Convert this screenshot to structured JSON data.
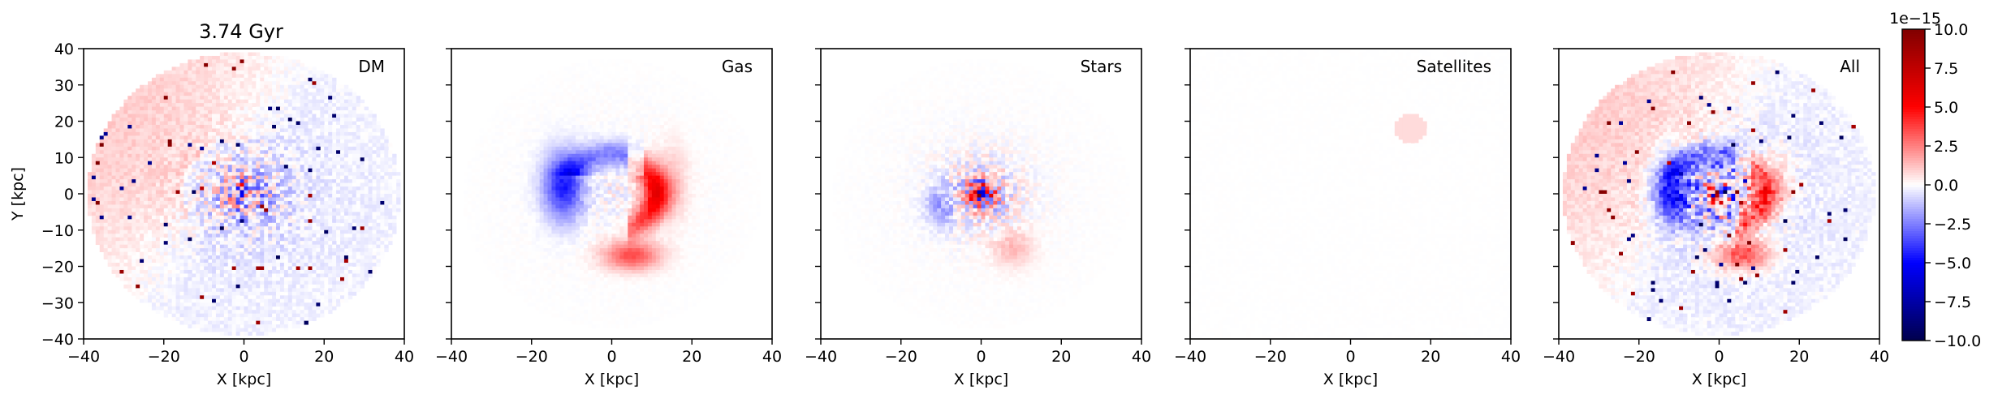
{
  "chart_data": {
    "type": "heatmap",
    "title": "3.74 Gyr",
    "xlim": [
      -40,
      40
    ],
    "ylim": [
      -40,
      40
    ],
    "x_ticks": [
      -40,
      -20,
      0,
      20,
      40
    ],
    "y_ticks": [
      40,
      30,
      20,
      10,
      0,
      -10,
      -20,
      -30,
      -40
    ],
    "xlabel": "X [kpc]",
    "ylabel": "Y [kpc]",
    "colorbar": {
      "cmap": "seismic",
      "range": [
        -10.0,
        10.0
      ],
      "offset_label": "1e−15",
      "ticks": [
        "10.0",
        "7.5",
        "5.0",
        "2.5",
        "0.0",
        "−2.5",
        "−5.0",
        "−7.5",
        "−10.0"
      ],
      "tick_values": [
        10.0,
        7.5,
        5.0,
        2.5,
        0.0,
        -2.5,
        -5.0,
        -7.5,
        -10.0
      ]
    },
    "panels": [
      {
        "label": "DM",
        "pattern": "dm"
      },
      {
        "label": "Gas",
        "pattern": "gas"
      },
      {
        "label": "Stars",
        "pattern": "stars"
      },
      {
        "label": "Satellites",
        "pattern": "sat"
      },
      {
        "label": "All",
        "pattern": "all"
      }
    ],
    "tick_text": {
      "x": [
        "−40",
        "−20",
        "0",
        "20",
        "40"
      ],
      "y": [
        "40",
        "30",
        "20",
        "10",
        "0",
        "−10",
        "−20",
        "−30",
        "−40"
      ]
    },
    "colors": {
      "frame": "#000000",
      "bg": "#ffffff"
    }
  }
}
